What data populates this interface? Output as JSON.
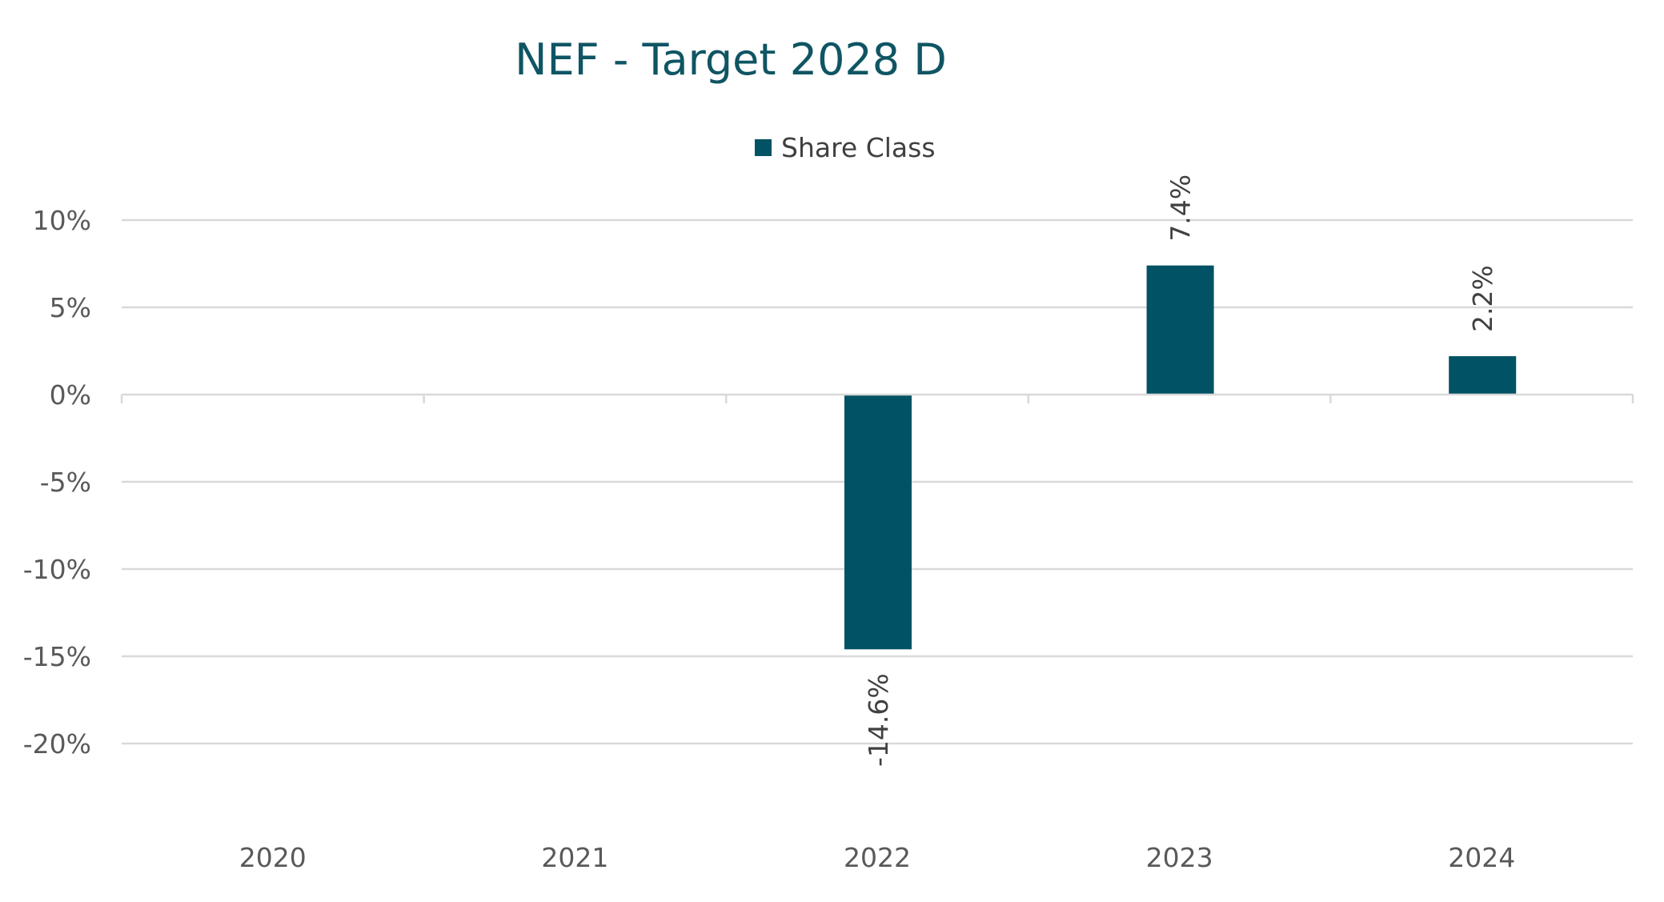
{
  "chart_data": {
    "type": "bar",
    "title": "NEF - Target 2028 D",
    "xlabel": "",
    "ylabel": "",
    "categories": [
      "2020",
      "2021",
      "2022",
      "2023",
      "2024"
    ],
    "series": [
      {
        "name": "Share Class",
        "color": "#005264",
        "values": [
          null,
          null,
          -14.6,
          7.4,
          2.2
        ],
        "labels": [
          "",
          "",
          "-14.6%",
          "7.4%",
          "2.2%"
        ]
      }
    ],
    "ylim": [
      -20,
      10
    ],
    "yticks": [
      10,
      5,
      0,
      -5,
      -10,
      -15,
      -20
    ],
    "ytick_labels": [
      "10%",
      "5%",
      "0%",
      "-5%",
      "-10%",
      "-15%",
      "-20%"
    ],
    "grid": true,
    "legend_position": "top"
  }
}
